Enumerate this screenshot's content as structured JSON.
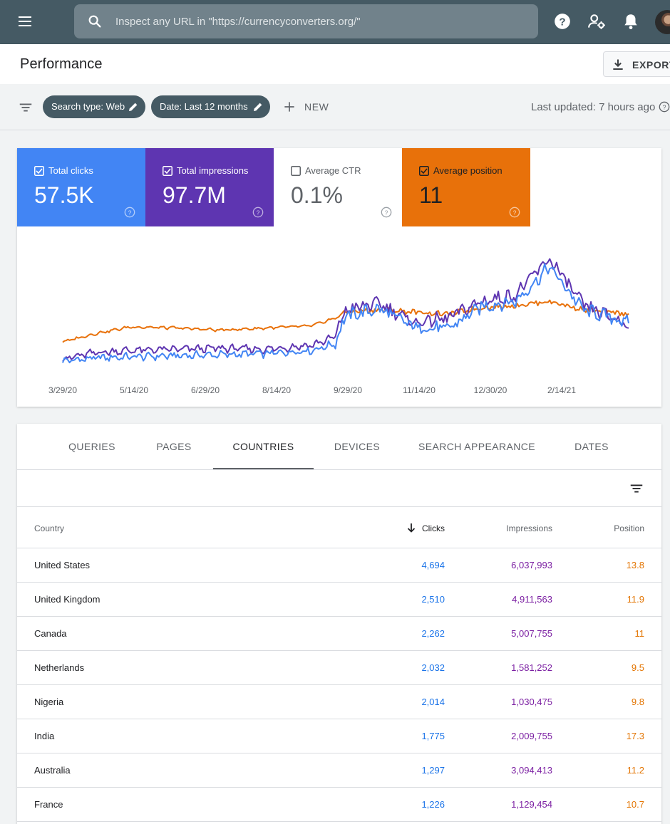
{
  "topbar": {
    "search_placeholder": "Inspect any URL in \"https://currencyconverters.org/\"",
    "icons": [
      "menu-icon",
      "search-icon",
      "help-icon",
      "manage-users-icon",
      "notifications-icon",
      "avatar"
    ]
  },
  "header": {
    "title": "Performance",
    "export_label": "EXPORT"
  },
  "filters": {
    "chips": [
      "Search type: Web",
      "Date: Last 12 months"
    ],
    "new_label": "NEW",
    "last_updated": "Last updated: 7 hours ago"
  },
  "metrics": [
    {
      "label": "Total clicks",
      "value": "57.5K",
      "checked": true,
      "color": "#4285f4"
    },
    {
      "label": "Total impressions",
      "value": "97.7M",
      "checked": true,
      "color": "#5e35b1"
    },
    {
      "label": "Average CTR",
      "value": "0.1%",
      "checked": false,
      "color": "#ffffff"
    },
    {
      "label": "Average position",
      "value": "11",
      "checked": true,
      "color": "#e8710a"
    }
  ],
  "chart_data": {
    "type": "line",
    "x_tick_labels": [
      "3/29/20",
      "5/14/20",
      "6/29/20",
      "8/14/20",
      "9/29/20",
      "11/14/20",
      "12/30/20",
      "2/14/21"
    ],
    "series_colors": {
      "clicks": "#4285f4",
      "impressions": "#5e35b1",
      "position": "#e8710a"
    },
    "grid": false,
    "segments": [
      {
        "at": 0.0,
        "clicks": 0.04,
        "impressions": 0.06,
        "position": 0.22
      },
      {
        "at": 0.06,
        "clicks": 0.07,
        "impressions": 0.12,
        "position": 0.3
      },
      {
        "at": 0.12,
        "clicks": 0.08,
        "impressions": 0.14,
        "position": 0.36
      },
      {
        "at": 0.2,
        "clicks": 0.09,
        "impressions": 0.15,
        "position": 0.35
      },
      {
        "at": 0.28,
        "clicks": 0.1,
        "impressions": 0.16,
        "position": 0.33
      },
      {
        "at": 0.36,
        "clicks": 0.11,
        "impressions": 0.15,
        "position": 0.35
      },
      {
        "at": 0.44,
        "clicks": 0.14,
        "impressions": 0.19,
        "position": 0.37
      },
      {
        "at": 0.48,
        "clicks": 0.2,
        "impressions": 0.26,
        "position": 0.44
      },
      {
        "at": 0.5,
        "clicks": 0.46,
        "impressions": 0.52,
        "position": 0.5
      },
      {
        "at": 0.56,
        "clicks": 0.53,
        "impressions": 0.58,
        "position": 0.52
      },
      {
        "at": 0.62,
        "clicks": 0.36,
        "impressions": 0.4,
        "position": 0.5
      },
      {
        "at": 0.68,
        "clicks": 0.34,
        "impressions": 0.44,
        "position": 0.48
      },
      {
        "at": 0.74,
        "clicks": 0.55,
        "impressions": 0.6,
        "position": 0.54
      },
      {
        "at": 0.8,
        "clicks": 0.6,
        "impressions": 0.66,
        "position": 0.56
      },
      {
        "at": 0.86,
        "clicks": 0.92,
        "impressions": 1.0,
        "position": 0.6
      },
      {
        "at": 0.92,
        "clicks": 0.52,
        "impressions": 0.56,
        "position": 0.52
      },
      {
        "at": 1.0,
        "clicks": 0.4,
        "impressions": 0.38,
        "position": 0.48
      }
    ]
  },
  "tabs": [
    {
      "label": "QUERIES",
      "active": false
    },
    {
      "label": "PAGES",
      "active": false
    },
    {
      "label": "COUNTRIES",
      "active": true
    },
    {
      "label": "DEVICES",
      "active": false
    },
    {
      "label": "SEARCH APPEARANCE",
      "active": false
    },
    {
      "label": "DATES",
      "active": false
    }
  ],
  "table": {
    "columns": [
      "Country",
      "Clicks",
      "Impressions",
      "Position"
    ],
    "sort_column": "Clicks",
    "rows": [
      {
        "country": "United States",
        "clicks": "4,694",
        "impressions": "6,037,993",
        "position": "13.8"
      },
      {
        "country": "United Kingdom",
        "clicks": "2,510",
        "impressions": "4,911,563",
        "position": "11.9"
      },
      {
        "country": "Canada",
        "clicks": "2,262",
        "impressions": "5,007,755",
        "position": "11"
      },
      {
        "country": "Netherlands",
        "clicks": "2,032",
        "impressions": "1,581,252",
        "position": "9.5"
      },
      {
        "country": "Nigeria",
        "clicks": "2,014",
        "impressions": "1,030,475",
        "position": "9.8"
      },
      {
        "country": "India",
        "clicks": "1,775",
        "impressions": "2,009,755",
        "position": "17.3"
      },
      {
        "country": "Australia",
        "clicks": "1,297",
        "impressions": "3,094,413",
        "position": "11.2"
      },
      {
        "country": "France",
        "clicks": "1,226",
        "impressions": "1,129,454",
        "position": "10.7"
      }
    ]
  }
}
